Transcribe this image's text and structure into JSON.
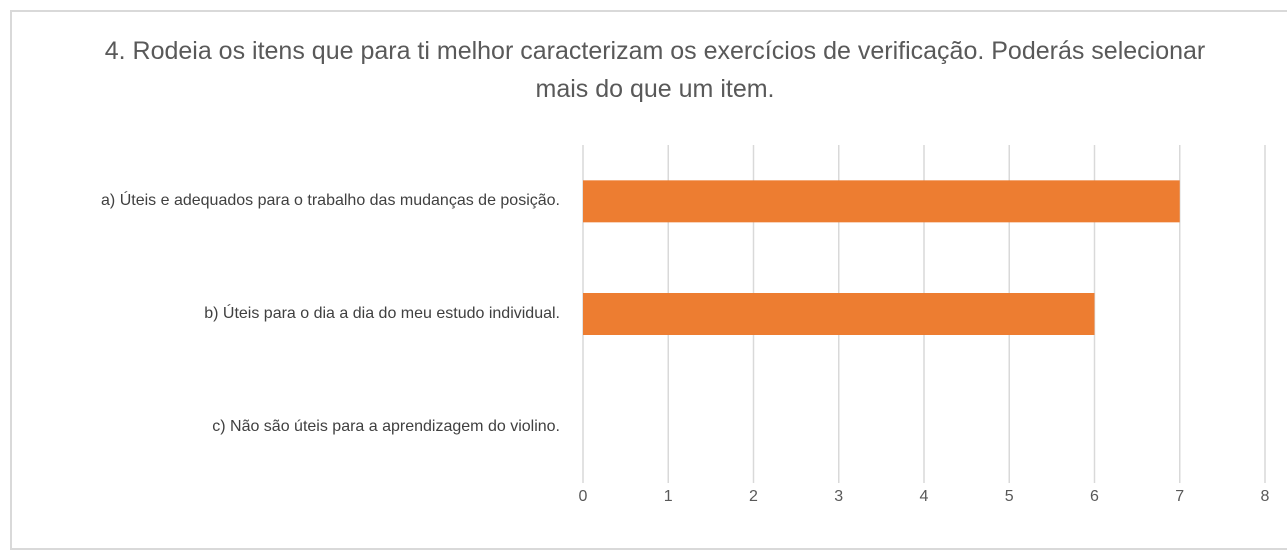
{
  "chart_data": {
    "type": "bar",
    "orientation": "horizontal",
    "title": "4. Rodeia os itens que para ti melhor caracterizam os exercícios de verificação. Poderás selecionar mais do que um item.",
    "categories": [
      "a) Úteis e adequados para o trabalho das mudanças de posição.",
      "b) Úteis para o dia a dia do meu estudo individual.",
      "c) Não são úteis para a aprendizagem do violino."
    ],
    "values": [
      7,
      6,
      0
    ],
    "color": "#ed7d31",
    "xlim": [
      0,
      8
    ],
    "xticks": [
      0,
      1,
      2,
      3,
      4,
      5,
      6,
      7,
      8
    ],
    "grid": true
  }
}
